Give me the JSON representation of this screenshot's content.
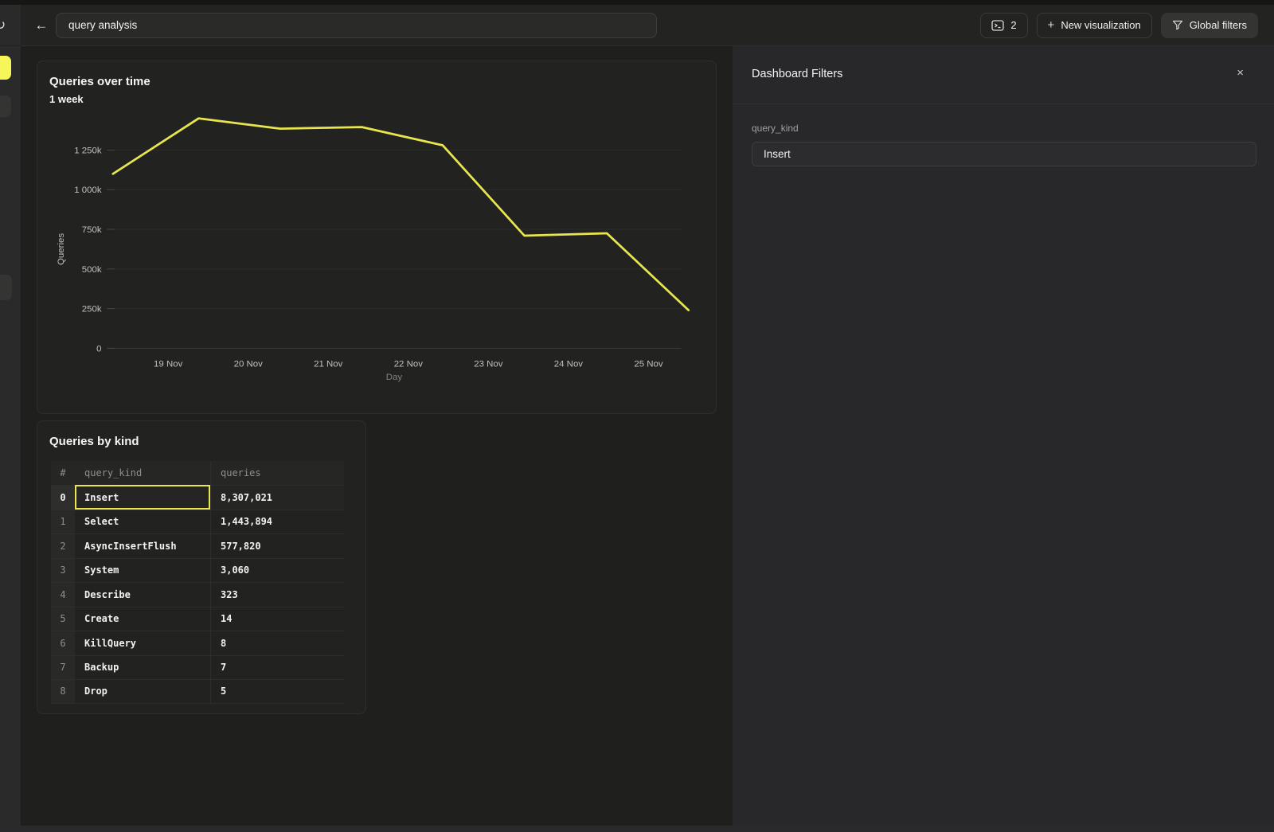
{
  "topbar": {
    "back_icon": "←",
    "title_input": "query analysis",
    "console_count": "2",
    "new_viz_plus": "+",
    "new_viz_label": "New visualization",
    "global_filters_label": "Global filters"
  },
  "rail": {
    "refresh_icon": "↻"
  },
  "chart_data": {
    "type": "line",
    "title": "Queries over time",
    "subtitle": "1 week",
    "xlabel": "Day",
    "ylabel": "Queries",
    "x_tick_labels": [
      "19 Nov",
      "20 Nov",
      "21 Nov",
      "22 Nov",
      "23 Nov",
      "24 Nov",
      "25 Nov"
    ],
    "x_tick_days": [
      19,
      20,
      21,
      22,
      23,
      24,
      25
    ],
    "y_tick_labels": [
      "0",
      "250k",
      "500k",
      "750k",
      "1 000k",
      "1 250k"
    ],
    "y_tick_values": [
      0,
      250000,
      500000,
      750000,
      1000000,
      1250000
    ],
    "ylim": [
      0,
      1500000
    ],
    "grid": true,
    "legend": "none",
    "line_color": "#e8e54e",
    "series": [
      {
        "name": "Queries",
        "points": [
          {
            "day": 18.31,
            "value": 1100000
          },
          {
            "day": 19.38,
            "value": 1450000
          },
          {
            "day": 20.4,
            "value": 1385000
          },
          {
            "day": 21.42,
            "value": 1395000
          },
          {
            "day": 22.43,
            "value": 1280000
          },
          {
            "day": 23.45,
            "value": 710000
          },
          {
            "day": 24.48,
            "value": 725000
          },
          {
            "day": 25.5,
            "value": 240000
          }
        ]
      }
    ]
  },
  "table_card": {
    "title": "Queries by kind",
    "columns": [
      "#",
      "query_kind",
      "queries"
    ],
    "rows": [
      {
        "index": "0",
        "query_kind": "Insert",
        "queries": "8,307,021"
      },
      {
        "index": "1",
        "query_kind": "Select",
        "queries": "1,443,894"
      },
      {
        "index": "2",
        "query_kind": "AsyncInsertFlush",
        "queries": "577,820"
      },
      {
        "index": "3",
        "query_kind": "System",
        "queries": "3,060"
      },
      {
        "index": "4",
        "query_kind": "Describe",
        "queries": "323"
      },
      {
        "index": "5",
        "query_kind": "Create",
        "queries": "14"
      },
      {
        "index": "6",
        "query_kind": "KillQuery",
        "queries": "8"
      },
      {
        "index": "7",
        "query_kind": "Backup",
        "queries": "7"
      },
      {
        "index": "8",
        "query_kind": "Drop",
        "queries": "5"
      }
    ],
    "selected": {
      "row": 0,
      "column": "query_kind"
    }
  },
  "filters_panel": {
    "title": "Dashboard Filters",
    "close_icon": "×",
    "fields": [
      {
        "label": "query_kind",
        "value": "Insert"
      }
    ]
  }
}
